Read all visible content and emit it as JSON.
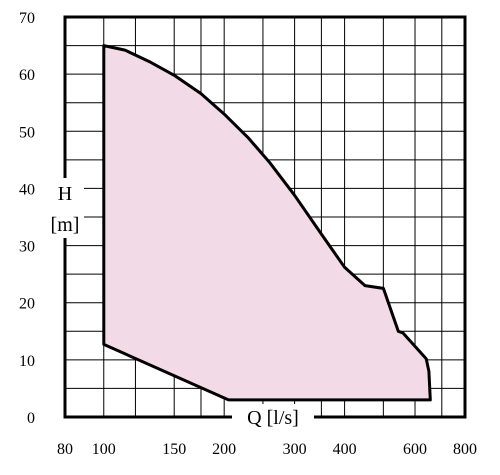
{
  "chart_data": {
    "type": "area",
    "xlabel": "Q [l/s]",
    "ylabel_lines": [
      "H",
      "[m]"
    ],
    "x_scale": "log",
    "xlim": [
      80,
      800
    ],
    "ylim": [
      0,
      70
    ],
    "x_ticks": [
      80,
      100,
      150,
      200,
      300,
      400,
      600,
      800
    ],
    "x_tick_labels": [
      "80",
      "100",
      "150",
      "200",
      "300",
      "400",
      "600",
      "800"
    ],
    "y_ticks": [
      0,
      10,
      20,
      30,
      40,
      50,
      60,
      70
    ],
    "y_tick_labels": [
      "0",
      "10",
      "20",
      "30",
      "40",
      "50",
      "60",
      "70"
    ],
    "x_gridlines": [
      80,
      100,
      120,
      150,
      175,
      200,
      250,
      300,
      350,
      400,
      500,
      600,
      700,
      800
    ],
    "y_gridlines": [
      0,
      5,
      10,
      15,
      20,
      25,
      30,
      35,
      40,
      45,
      50,
      55,
      60,
      65,
      70
    ],
    "grid": true,
    "fill_color": "#f2dbe6",
    "line_color": "#000000",
    "region": {
      "x": [
        100,
        113,
        130,
        150,
        175,
        200,
        230,
        260,
        300,
        350,
        400,
        450,
        500,
        545,
        560,
        640,
        650,
        655,
        205,
        100,
        100
      ],
      "y": [
        65,
        64.2,
        62.2,
        59.8,
        56.6,
        53,
        48.8,
        44.5,
        38.8,
        32,
        26.2,
        23,
        22.5,
        15,
        14.7,
        10.2,
        8,
        3,
        3,
        12.7,
        65
      ]
    }
  }
}
